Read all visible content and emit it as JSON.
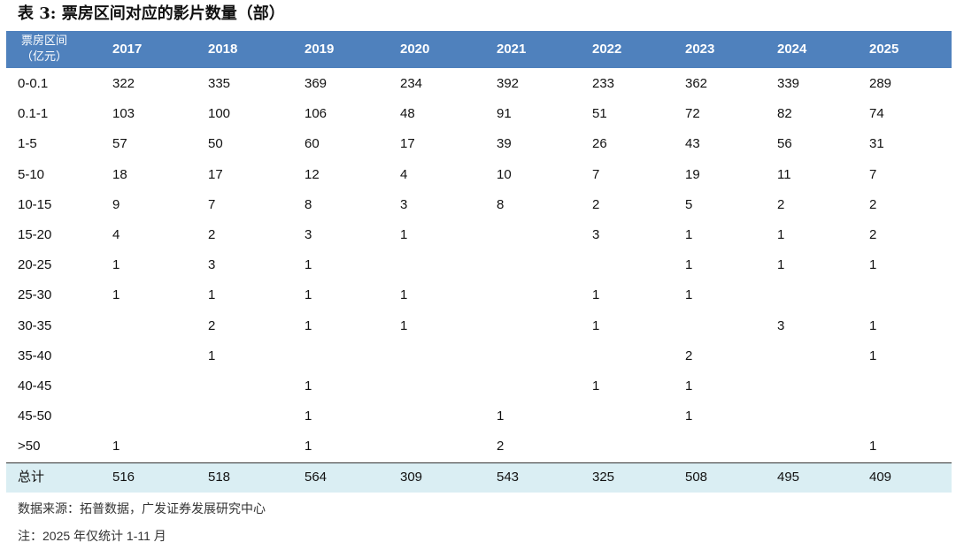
{
  "title": "表 3: 票房区间对应的影片数量（部）",
  "table": {
    "header": {
      "label_lines": [
        "票房区间",
        "（亿元）"
      ],
      "years": [
        "2017",
        "2018",
        "2019",
        "2020",
        "2021",
        "2022",
        "2023",
        "2024",
        "2025"
      ]
    },
    "rows": [
      {
        "label": "0-0.1",
        "values": [
          322,
          335,
          369,
          234,
          392,
          233,
          362,
          339,
          289
        ]
      },
      {
        "label": "0.1-1",
        "values": [
          103,
          100,
          106,
          48,
          91,
          51,
          72,
          82,
          74
        ]
      },
      {
        "label": "1-5",
        "values": [
          57,
          50,
          60,
          17,
          39,
          26,
          43,
          56,
          31
        ]
      },
      {
        "label": "5-10",
        "values": [
          18,
          17,
          12,
          4,
          10,
          7,
          19,
          11,
          7
        ]
      },
      {
        "label": "10-15",
        "values": [
          9,
          7,
          8,
          3,
          8,
          2,
          5,
          2,
          2
        ]
      },
      {
        "label": "15-20",
        "values": [
          4,
          2,
          3,
          1,
          null,
          3,
          1,
          1,
          2
        ]
      },
      {
        "label": "20-25",
        "values": [
          1,
          3,
          1,
          null,
          null,
          null,
          1,
          1,
          1
        ]
      },
      {
        "label": "25-30",
        "values": [
          1,
          1,
          1,
          1,
          null,
          1,
          1,
          null,
          null
        ]
      },
      {
        "label": "30-35",
        "values": [
          null,
          2,
          1,
          1,
          null,
          1,
          null,
          3,
          1
        ]
      },
      {
        "label": "35-40",
        "values": [
          null,
          1,
          null,
          null,
          null,
          null,
          2,
          null,
          1
        ]
      },
      {
        "label": "40-45",
        "values": [
          null,
          null,
          1,
          null,
          null,
          1,
          1,
          null,
          null
        ]
      },
      {
        "label": "45-50",
        "values": [
          null,
          null,
          1,
          null,
          1,
          null,
          1,
          null,
          null
        ]
      },
      {
        "label": ">50",
        "values": [
          1,
          null,
          1,
          null,
          2,
          null,
          null,
          null,
          1
        ]
      }
    ],
    "total": {
      "label": "总计",
      "values": [
        516,
        518,
        564,
        309,
        543,
        325,
        508,
        495,
        409
      ]
    }
  },
  "source": "数据来源：拓普数据，广发证券发展研究中心",
  "note": "注：2025 年仅统计 1-11 月"
}
